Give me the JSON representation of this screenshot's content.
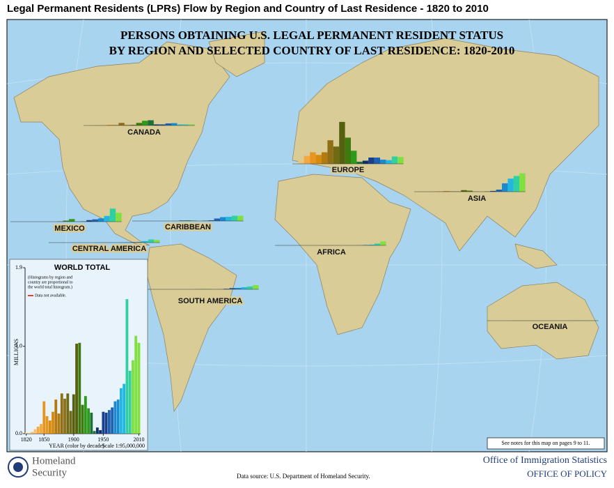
{
  "header": {
    "title": "Legal Permanent Residents (LPRs) Flow by Region and Country of Last Residence - 1820 to 2010"
  },
  "map": {
    "title_lines": [
      "PERSONS OBTAINING U.S. LEGAL PERMANENT RESIDENT STATUS",
      "BY REGION AND SELECTED COUNTRY OF LAST RESIDENCE: 1820-2010"
    ],
    "regions": [
      {
        "name": "CANADA",
        "values": [
          0.001,
          0.002,
          0.004,
          0.006,
          0.012,
          0.01,
          0.05,
          0.01,
          0.012,
          0.05,
          0.09,
          0.1,
          0.02,
          0.02,
          0.04,
          0.045,
          0.02,
          0.02,
          0.022
        ]
      },
      {
        "name": "EUROPE",
        "values": [
          0.01,
          0.05,
          0.15,
          0.22,
          0.17,
          0.22,
          0.45,
          0.33,
          0.8,
          0.5,
          0.25,
          0.04,
          0.06,
          0.12,
          0.12,
          0.08,
          0.07,
          0.14,
          0.13
        ]
      },
      {
        "name": "ASIA",
        "values": [
          0,
          0,
          0,
          0.004,
          0.006,
          0.012,
          0.007,
          0.006,
          0.03,
          0.02,
          0.003,
          0.001,
          0.004,
          0.015,
          0.04,
          0.16,
          0.25,
          0.3,
          0.35
        ]
      },
      {
        "name": "MEXICO",
        "values": [
          0,
          0,
          0,
          0,
          0,
          0,
          0,
          0,
          0.005,
          0.02,
          0.05,
          0.003,
          0.006,
          0.03,
          0.045,
          0.064,
          0.11,
          0.25,
          0.17
        ]
      },
      {
        "name": "CARIBBEAN",
        "values": [
          0,
          0,
          0,
          0,
          0,
          0,
          0,
          0,
          0.01,
          0.012,
          0.008,
          0.001,
          0.005,
          0.012,
          0.047,
          0.074,
          0.08,
          0.1,
          0.1
        ]
      },
      {
        "name": "CENTRAL AMERICA",
        "values": [
          0,
          0,
          0,
          0,
          0,
          0,
          0,
          0,
          0.001,
          0.002,
          0.002,
          0.001,
          0.002,
          0.004,
          0.01,
          0.013,
          0.03,
          0.06,
          0.05
        ]
      },
      {
        "name": "AFRICA",
        "values": [
          0,
          0,
          0,
          0,
          0,
          0,
          0,
          0,
          0.001,
          0.001,
          0.001,
          0,
          0.001,
          0.001,
          0.002,
          0.008,
          0.014,
          0.035,
          0.075
        ]
      },
      {
        "name": "SOUTH AMERICA",
        "values": [
          0,
          0,
          0,
          0,
          0,
          0,
          0,
          0,
          0.002,
          0.004,
          0.004,
          0.001,
          0.002,
          0.01,
          0.025,
          0.027,
          0.04,
          0.055,
          0.08
        ]
      },
      {
        "name": "OCEANIA",
        "values": [
          0,
          0,
          0,
          0,
          0.001,
          0.001,
          0.001,
          0.001,
          0.001,
          0.001,
          0.001,
          0.001,
          0.001,
          0.001,
          0.002,
          0.004,
          0.004,
          0.005,
          0.006
        ]
      }
    ],
    "scale": "Scale 1:95,000,000",
    "note": "See notes for this map on pages 9 to 11."
  },
  "chart_data": {
    "type": "bar",
    "title": "WORLD TOTAL",
    "notes": [
      "(Histograms by region and",
      "country are proportional to",
      "the world total histogram.)"
    ],
    "missing_label": "Data not available.",
    "y_label": "MILLIONS",
    "x_label": "YEAR (color by decade)",
    "decade_colors": [
      "#f7d9a0",
      "#f5c070",
      "#f3a840",
      "#e89520",
      "#d78a10",
      "#b27a10",
      "#8f7018",
      "#6f6a14",
      "#55600f",
      "#3f7a10",
      "#2e9a1a",
      "#1f6e3a",
      "#0e2f6a",
      "#1a3f8a",
      "#1f60b0",
      "#1a8ad0",
      "#22b7e0",
      "#30d0a0",
      "#7fe040"
    ],
    "x": [
      1820,
      1825,
      1830,
      1835,
      1840,
      1845,
      1850,
      1855,
      1860,
      1865,
      1870,
      1875,
      1880,
      1885,
      1890,
      1895,
      1900,
      1905,
      1910,
      1915,
      1920,
      1925,
      1930,
      1935,
      1940,
      1945,
      1950,
      1955,
      1960,
      1965,
      1970,
      1975,
      1980,
      1985,
      1990,
      1995,
      2000,
      2005,
      2010
    ],
    "values": [
      0.01,
      0.01,
      0.02,
      0.05,
      0.08,
      0.11,
      0.37,
      0.2,
      0.15,
      0.25,
      0.39,
      0.23,
      0.46,
      0.4,
      0.46,
      0.26,
      0.45,
      1.03,
      1.04,
      0.33,
      0.43,
      0.29,
      0.24,
      0.03,
      0.07,
      0.04,
      0.25,
      0.24,
      0.27,
      0.3,
      0.37,
      0.39,
      0.52,
      0.57,
      1.54,
      0.72,
      0.84,
      1.12,
      1.04
    ],
    "xlim": [
      1818,
      2013
    ],
    "ylim": [
      0,
      1.9
    ],
    "xticks": [
      1820,
      1850,
      1900,
      1950,
      2010
    ],
    "yticks": [
      {
        "value": 0,
        "label": "0.0"
      },
      {
        "value": 1,
        "label": "1.0"
      },
      {
        "value": 1.9,
        "label": "1.9"
      }
    ]
  },
  "footer": {
    "agency": [
      "Homeland",
      "Security"
    ],
    "source": "Data source:  U.S. Department of Homeland Security.",
    "office_lines": [
      "Office of Immigration Statistics",
      "OFFICE OF POLICY"
    ]
  }
}
